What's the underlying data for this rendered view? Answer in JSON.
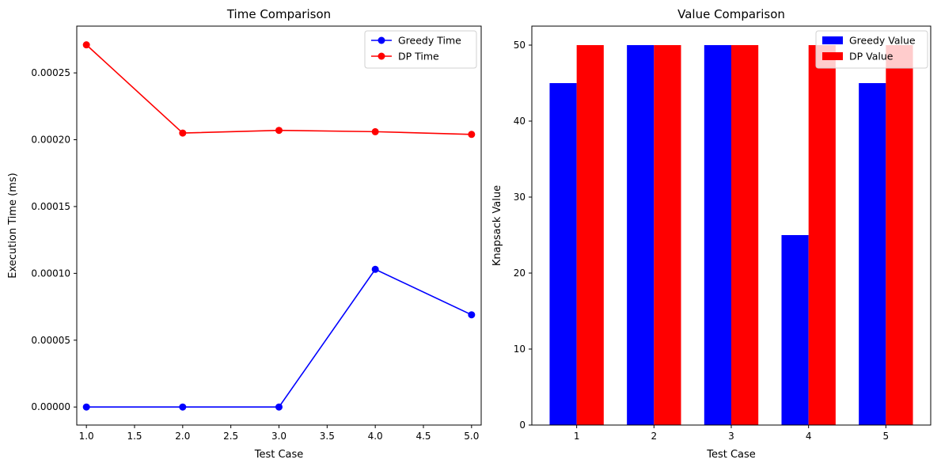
{
  "chart_data": [
    {
      "type": "line",
      "title": "Time Comparison",
      "xlabel": "Test Case",
      "ylabel": "Execution Time (ms)",
      "xlim": [
        0.9,
        5.1
      ],
      "ylim": [
        -1.35e-05,
        0.000285
      ],
      "xticks": [
        "1.0",
        "1.5",
        "2.0",
        "2.5",
        "3.0",
        "3.5",
        "4.0",
        "4.5",
        "5.0"
      ],
      "yticks": [
        "0.00000",
        "0.00005",
        "0.00010",
        "0.00015",
        "0.00020",
        "0.00025"
      ],
      "x": [
        1,
        2,
        3,
        4,
        5
      ],
      "series": [
        {
          "name": "Greedy Time",
          "color": "#0000ff",
          "values": [
            0.0,
            0.0,
            0.0,
            0.000103,
            6.9e-05
          ]
        },
        {
          "name": "DP Time",
          "color": "#ff0000",
          "values": [
            0.000271,
            0.000205,
            0.000207,
            0.000206,
            0.000204
          ]
        }
      ],
      "legend": "top-right",
      "grid": false
    },
    {
      "type": "bar",
      "title": "Value Comparison",
      "xlabel": "Test Case",
      "ylabel": "Knapsack Value",
      "ylim": [
        0,
        52.5
      ],
      "categories": [
        "1",
        "2",
        "3",
        "4",
        "5"
      ],
      "yticks": [
        "0",
        "10",
        "20",
        "30",
        "40",
        "50"
      ],
      "series": [
        {
          "name": "Greedy Value",
          "color": "#0000ff",
          "values": [
            45,
            50,
            50,
            25,
            45
          ]
        },
        {
          "name": "DP Value",
          "color": "#ff0000",
          "values": [
            50,
            50,
            50,
            50,
            50
          ]
        }
      ],
      "legend": "top-right",
      "grid": false
    }
  ]
}
